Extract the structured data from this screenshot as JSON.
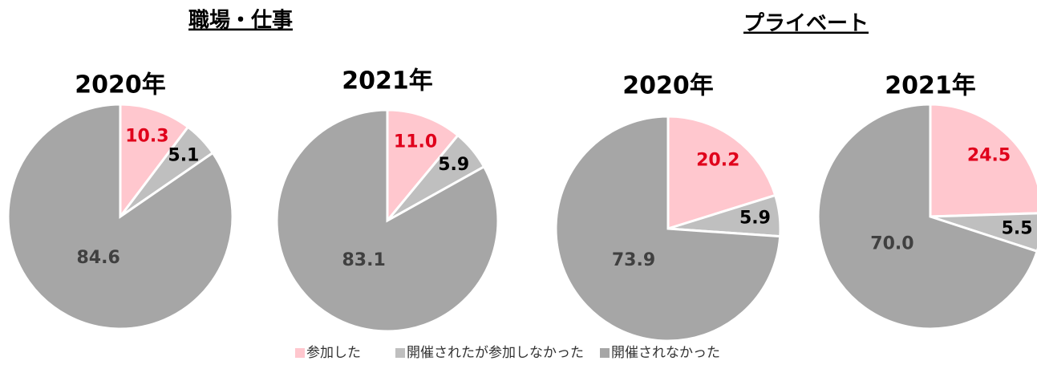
{
  "group_titles": [
    "職場・仕事",
    "プライベート"
  ],
  "chart_data": [
    {
      "type": "pie",
      "title": "2020年",
      "categories": [
        "参加した",
        "開催されたが参加しなかった",
        "開催されなかった"
      ],
      "values": [
        10.3,
        5.1,
        84.6
      ],
      "colors": [
        "#ffc7ce",
        "#bfbfbf",
        "#a6a6a6"
      ],
      "label_colors": [
        "#e0001b",
        "#000000",
        "#404040"
      ]
    },
    {
      "type": "pie",
      "title": "2021年",
      "categories": [
        "参加した",
        "開催されたが参加しなかった",
        "開催されなかった"
      ],
      "values": [
        11,
        5.9,
        83.1
      ],
      "value_labels": [
        "11.0",
        "5.9",
        "83.1"
      ],
      "colors": [
        "#ffc7ce",
        "#bfbfbf",
        "#a6a6a6"
      ],
      "label_colors": [
        "#e0001b",
        "#000000",
        "#404040"
      ]
    },
    {
      "type": "pie",
      "title": "2020年",
      "categories": [
        "参加した",
        "開催されたが参加しなかった",
        "開催されなかった"
      ],
      "values": [
        20.2,
        5.9,
        73.9
      ],
      "colors": [
        "#ffc7ce",
        "#bfbfbf",
        "#a6a6a6"
      ],
      "label_colors": [
        "#e0001b",
        "#000000",
        "#404040"
      ]
    },
    {
      "type": "pie",
      "title": "2021年",
      "categories": [
        "参加した",
        "開催されたが参加しなかった",
        "開催されなかった"
      ],
      "values": [
        24.5,
        5.5,
        70
      ],
      "value_labels": [
        "24.5",
        "5.5",
        "70.0"
      ],
      "colors": [
        "#ffc7ce",
        "#bfbfbf",
        "#a6a6a6"
      ],
      "label_colors": [
        "#e0001b",
        "#000000",
        "#404040"
      ]
    }
  ]
}
